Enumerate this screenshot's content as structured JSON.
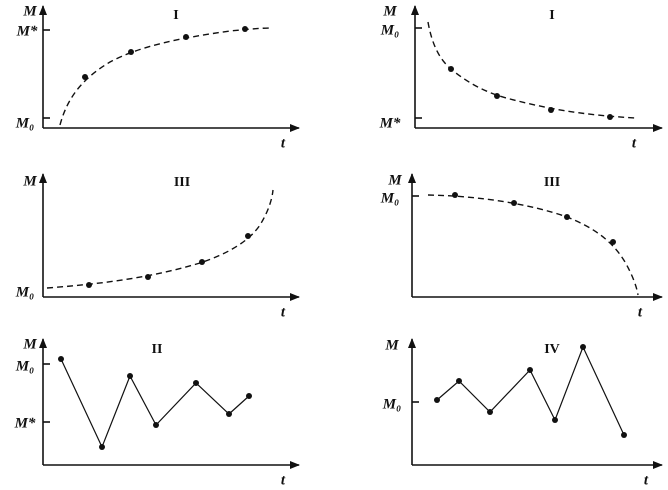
{
  "panels": [
    {
      "title": "I",
      "y_label": "M",
      "x_label": "t",
      "y_ticks": [
        "M*",
        "M₀"
      ]
    },
    {
      "title": "I",
      "y_label": "M",
      "x_label": "t",
      "y_ticks": [
        "M₀",
        "M*"
      ]
    },
    {
      "title": "III",
      "y_label": "M",
      "x_label": "t",
      "y_ticks": [
        "M₀"
      ]
    },
    {
      "title": "III",
      "y_label": "M",
      "x_label": "t",
      "y_ticks": [
        "M₀"
      ]
    },
    {
      "title": "II",
      "y_label": "M",
      "x_label": "t",
      "y_ticks": [
        "M₀",
        "M*"
      ]
    },
    {
      "title": "IV",
      "y_label": "M",
      "x_label": "t",
      "y_ticks": [
        "M₀"
      ]
    }
  ]
}
